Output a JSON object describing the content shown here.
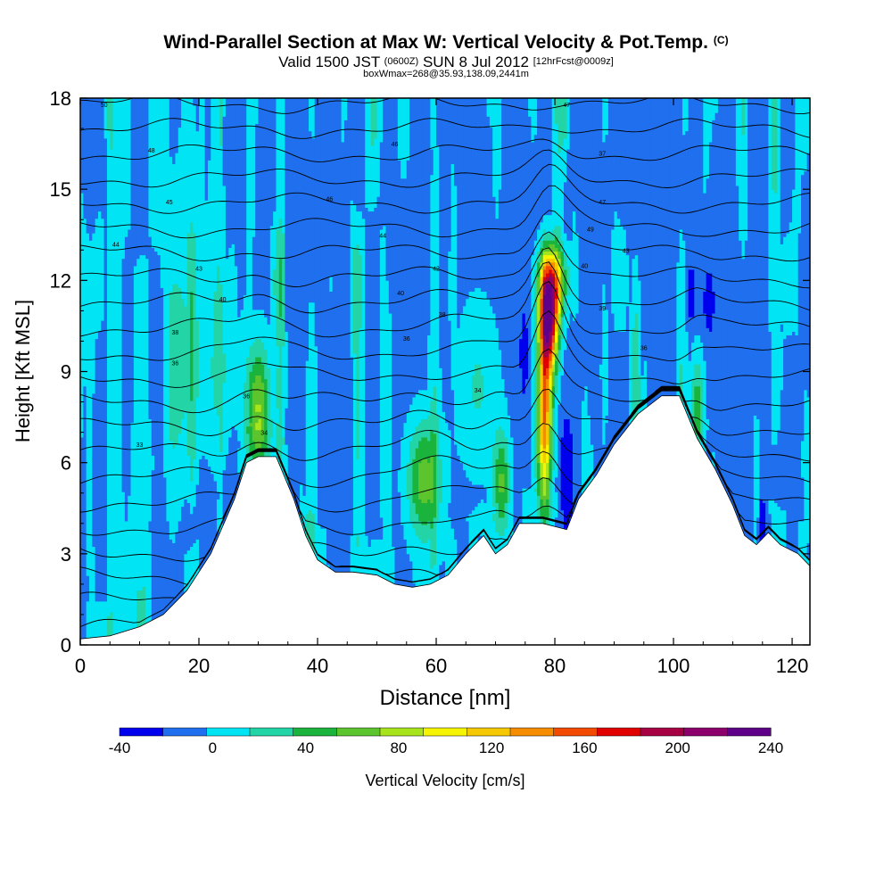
{
  "header": {
    "title": "Wind-Parallel Section at Max W: Vertical Velocity & Pot.Temp.",
    "title_mark": "(C)",
    "valid_prefix": "Valid 1500 JST",
    "valid_utc": "(0600Z)",
    "valid_date": "SUN 8 Jul 2012",
    "forecast": "[12hrFcst@0009z]",
    "box_info": "boxWmax=268@35.93,138.09,2441m"
  },
  "chart_data": {
    "type": "heatmap",
    "xlabel": "Distance [nm]",
    "ylabel": "Height [Kft MSL]",
    "xlim": [
      0,
      123
    ],
    "ylim": [
      0,
      18
    ],
    "x_ticks": [
      0,
      20,
      40,
      60,
      80,
      100,
      120
    ],
    "y_ticks": [
      0,
      3,
      6,
      9,
      12,
      15,
      18
    ],
    "colorbar": {
      "label": "Vertical Velocity [cm/s]",
      "ticks": [
        -40,
        0,
        40,
        80,
        120,
        160,
        200,
        240
      ],
      "bins": [
        -40,
        -20,
        0,
        20,
        40,
        60,
        80,
        100,
        120,
        140,
        160,
        180,
        200,
        220,
        240
      ],
      "colors": [
        "#0000ee",
        "#1f6fee",
        "#00e4f4",
        "#22d4a6",
        "#1ab43c",
        "#5cc42c",
        "#a8e41c",
        "#f6f400",
        "#f6c800",
        "#f68c00",
        "#f24a00",
        "#e00000",
        "#a60042",
        "#8c006c",
        "#5e0088"
      ]
    },
    "terrain_kft": [
      [
        0,
        0.2
      ],
      [
        5,
        0.3
      ],
      [
        10,
        0.6
      ],
      [
        14,
        1.0
      ],
      [
        18,
        1.8
      ],
      [
        22,
        3.0
      ],
      [
        26,
        4.8
      ],
      [
        28,
        6.0
      ],
      [
        30,
        6.2
      ],
      [
        33,
        6.2
      ],
      [
        36,
        4.8
      ],
      [
        38,
        3.6
      ],
      [
        40,
        2.8
      ],
      [
        43,
        2.4
      ],
      [
        46,
        2.4
      ],
      [
        50,
        2.3
      ],
      [
        53,
        2.0
      ],
      [
        56,
        1.9
      ],
      [
        59,
        2.0
      ],
      [
        62,
        2.3
      ],
      [
        65,
        3.0
      ],
      [
        68,
        3.6
      ],
      [
        70,
        3.0
      ],
      [
        72,
        3.3
      ],
      [
        74,
        4.0
      ],
      [
        78,
        4.0
      ],
      [
        80,
        3.9
      ],
      [
        82,
        3.8
      ],
      [
        84,
        4.8
      ],
      [
        87,
        5.6
      ],
      [
        90,
        6.6
      ],
      [
        94,
        7.6
      ],
      [
        98,
        8.2
      ],
      [
        101,
        8.2
      ],
      [
        104,
        6.8
      ],
      [
        107,
        5.8
      ],
      [
        110,
        4.6
      ],
      [
        112,
        3.6
      ],
      [
        114,
        3.3
      ],
      [
        116,
        3.7
      ],
      [
        118,
        3.3
      ],
      [
        121,
        3.0
      ],
      [
        123,
        2.6
      ]
    ],
    "updrafts": [
      {
        "x": 30,
        "z": 7.8,
        "w": 90,
        "sx": 1.4,
        "sz": 1.5
      },
      {
        "x": 58,
        "z": 5.4,
        "w": 80,
        "sx": 2.0,
        "sz": 1.4
      },
      {
        "x": 71,
        "z": 5.3,
        "w": 70,
        "sx": 1.0,
        "sz": 1.2
      },
      {
        "x": 79,
        "z": 10.8,
        "w": 230,
        "sx": 1.1,
        "sz": 1.2
      },
      {
        "x": 78.3,
        "z": 7.5,
        "w": 150,
        "sx": 0.9,
        "sz": 2.0
      },
      {
        "x": 79.8,
        "z": 12.0,
        "w": 100,
        "sx": 1.6,
        "sz": 0.8
      },
      {
        "x": 104,
        "z": 7.8,
        "w": 60,
        "sx": 0.8,
        "sz": 1.2
      },
      {
        "x": 67,
        "z": 8.5,
        "w": 30,
        "sx": 2.5,
        "sz": 2.0
      }
    ],
    "downdrafts": [
      {
        "x": 82,
        "z": 5.4,
        "w": -60,
        "sx": 0.6,
        "sz": 1.2
      },
      {
        "x": 74.8,
        "z": 9.6,
        "w": -50,
        "sx": 0.35,
        "sz": 0.8
      },
      {
        "x": 103,
        "z": 11.6,
        "w": -50,
        "sx": 0.4,
        "sz": 0.5
      },
      {
        "x": 115,
        "z": 3.9,
        "w": -50,
        "sx": 0.4,
        "sz": 0.6
      },
      {
        "x": 106,
        "z": 11.3,
        "w": -45,
        "sx": 0.5,
        "sz": 0.6
      }
    ],
    "isentropes": {
      "surface_theta_C": 31,
      "lapse_C_per_kft": 1.0,
      "labels": [
        {
          "text": "50",
          "x": 4,
          "z": 17.8
        },
        {
          "text": "47",
          "x": 82,
          "z": 17.8
        },
        {
          "text": "48",
          "x": 12,
          "z": 16.3
        },
        {
          "text": "46",
          "x": 53,
          "z": 16.5
        },
        {
          "text": "37",
          "x": 88,
          "z": 16.2
        },
        {
          "text": "45",
          "x": 15,
          "z": 14.6
        },
        {
          "text": "46",
          "x": 42,
          "z": 14.7
        },
        {
          "text": "47",
          "x": 88,
          "z": 14.6
        },
        {
          "text": "44",
          "x": 6,
          "z": 13.2
        },
        {
          "text": "44",
          "x": 51,
          "z": 13.5
        },
        {
          "text": "49",
          "x": 86,
          "z": 13.7
        },
        {
          "text": "43",
          "x": 92,
          "z": 13.0
        },
        {
          "text": "43",
          "x": 20,
          "z": 12.4
        },
        {
          "text": "42",
          "x": 60,
          "z": 12.4
        },
        {
          "text": "40",
          "x": 85,
          "z": 12.5
        },
        {
          "text": "40",
          "x": 24,
          "z": 11.4
        },
        {
          "text": "40",
          "x": 54,
          "z": 11.6
        },
        {
          "text": "39",
          "x": 88,
          "z": 11.1
        },
        {
          "text": "38",
          "x": 61,
          "z": 10.9
        },
        {
          "text": "38",
          "x": 16,
          "z": 10.3
        },
        {
          "text": "36",
          "x": 55,
          "z": 10.1
        },
        {
          "text": "36",
          "x": 95,
          "z": 9.8
        },
        {
          "text": "36",
          "x": 16,
          "z": 9.3
        },
        {
          "text": "34",
          "x": 67,
          "z": 8.4
        },
        {
          "text": "36",
          "x": 28,
          "z": 8.2
        },
        {
          "text": "34",
          "x": 31,
          "z": 7.0
        },
        {
          "text": "33",
          "x": 10,
          "z": 6.6
        }
      ]
    }
  }
}
